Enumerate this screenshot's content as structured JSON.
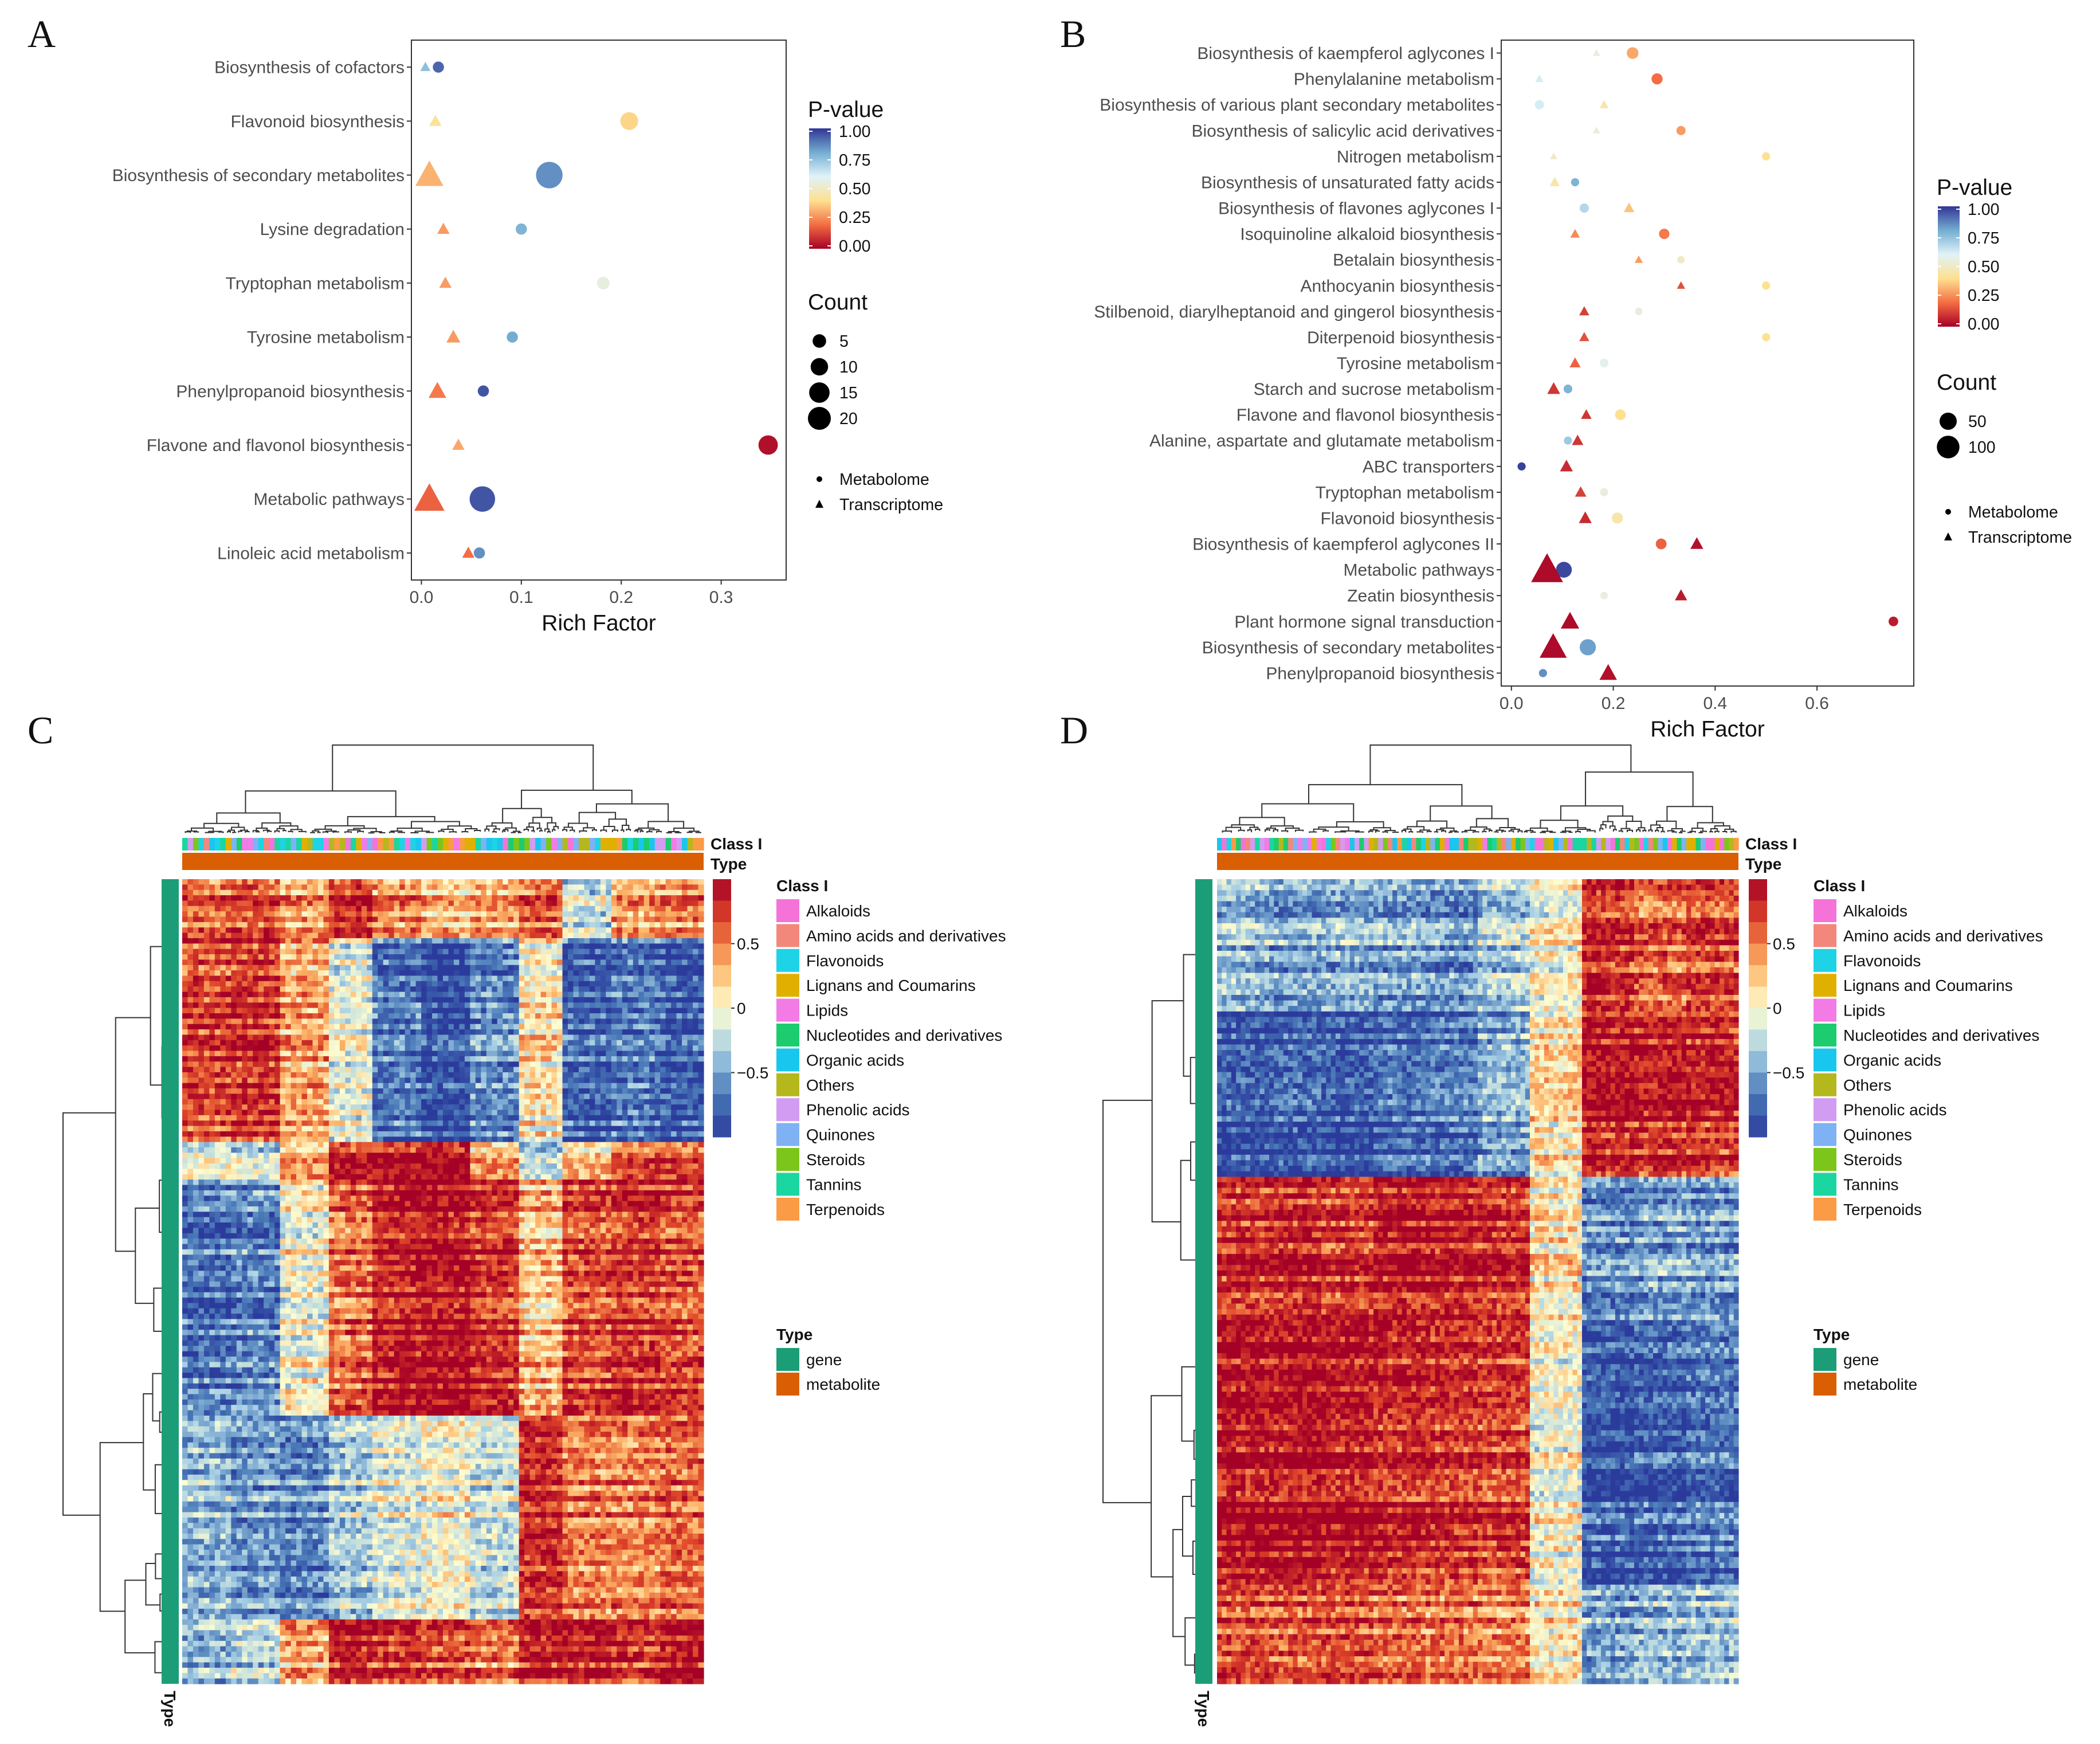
{
  "panels": [
    "A",
    "B",
    "C",
    "D"
  ],
  "chart_data": [
    {
      "panel": "A",
      "type": "scatter",
      "xlabel": "Rich Factor",
      "xticks": [
        "0.0",
        "0.1",
        "0.2",
        "0.3"
      ],
      "xlim": [
        -0.01,
        0.365
      ],
      "categories": [
        "Biosynthesis of cofactors",
        "Flavonoid biosynthesis",
        "Biosynthesis of secondary metabolites",
        "Lysine degradation",
        "Tryptophan metabolism",
        "Tyrosine metabolism",
        "Phenylpropanoid biosynthesis",
        "Flavone and flavonol biosynthesis",
        "Metabolic pathways",
        "Linoleic acid metabolism"
      ],
      "legend_pvalue": {
        "title": "P-value",
        "ticks": [
          "1.00",
          "0.75",
          "0.50",
          "0.25",
          "0.00"
        ]
      },
      "legend_count": {
        "title": "Count",
        "values": [
          5,
          10,
          15,
          20
        ],
        "labels": [
          "5",
          "10",
          "15",
          "20"
        ]
      },
      "legend_type": {
        "metabolome": "Metabolome",
        "transcriptome": "Transcriptome"
      },
      "series": [
        {
          "name": "Metabolome",
          "shape": "circle",
          "points": [
            {
              "pathway": "Biosynthesis of cofactors",
              "x": 0.017,
              "p": 0.92,
              "count": 2
            },
            {
              "pathway": "Flavonoid biosynthesis",
              "x": 0.208,
              "p": 0.38,
              "count": 8
            },
            {
              "pathway": "Biosynthesis of secondary metabolites",
              "x": 0.128,
              "p": 0.85,
              "count": 22
            },
            {
              "pathway": "Lysine degradation",
              "x": 0.1,
              "p": 0.78,
              "count": 2
            },
            {
              "pathway": "Tryptophan metabolism",
              "x": 0.182,
              "p": 0.55,
              "count": 3
            },
            {
              "pathway": "Tyrosine metabolism",
              "x": 0.091,
              "p": 0.8,
              "count": 2
            },
            {
              "pathway": "Phenylpropanoid biosynthesis",
              "x": 0.062,
              "p": 0.95,
              "count": 2
            },
            {
              "pathway": "Flavone and flavonol biosynthesis",
              "x": 0.347,
              "p": 0.03,
              "count": 10
            },
            {
              "pathway": "Metabolic pathways",
              "x": 0.061,
              "p": 0.95,
              "count": 20
            },
            {
              "pathway": "Linoleic acid metabolism",
              "x": 0.058,
              "p": 0.85,
              "count": 2
            }
          ]
        },
        {
          "name": "Transcriptome",
          "shape": "triangle",
          "points": [
            {
              "pathway": "Biosynthesis of cofactors",
              "x": 0.004,
              "p": 0.75,
              "count": 1
            },
            {
              "pathway": "Flavonoid biosynthesis",
              "x": 0.014,
              "p": 0.42,
              "count": 2
            },
            {
              "pathway": "Biosynthesis of secondary metabolites",
              "x": 0.008,
              "p": 0.32,
              "count": 20
            },
            {
              "pathway": "Lysine degradation",
              "x": 0.022,
              "p": 0.28,
              "count": 2
            },
            {
              "pathway": "Tryptophan metabolism",
              "x": 0.024,
              "p": 0.28,
              "count": 2
            },
            {
              "pathway": "Tyrosine metabolism",
              "x": 0.032,
              "p": 0.28,
              "count": 3
            },
            {
              "pathway": "Phenylpropanoid biosynthesis",
              "x": 0.016,
              "p": 0.22,
              "count": 6
            },
            {
              "pathway": "Flavone and flavonol biosynthesis",
              "x": 0.037,
              "p": 0.3,
              "count": 2
            },
            {
              "pathway": "Metabolic pathways",
              "x": 0.008,
              "p": 0.18,
              "count": 24
            },
            {
              "pathway": "Linoleic acid metabolism",
              "x": 0.047,
              "p": 0.2,
              "count": 2
            }
          ]
        }
      ]
    },
    {
      "panel": "B",
      "type": "scatter",
      "xlabel": "Rich Factor",
      "xticks": [
        "0.0",
        "0.2",
        "0.4",
        "0.6"
      ],
      "xlim": [
        -0.02,
        0.79
      ],
      "categories": [
        "Biosynthesis of kaempferol aglycones I",
        "Phenylalanine metabolism",
        "Biosynthesis of various plant secondary metabolites",
        "Biosynthesis of salicylic acid derivatives",
        "Nitrogen metabolism",
        "Biosynthesis of unsaturated fatty acids",
        "Biosynthesis of flavones aglycones I",
        "Isoquinoline alkaloid biosynthesis",
        "Betalain biosynthesis",
        "Anthocyanin biosynthesis",
        "Stilbenoid, diarylheptanoid and gingerol biosynthesis",
        "Diterpenoid biosynthesis",
        "Tyrosine metabolism",
        "Starch and sucrose metabolism",
        "Flavone and flavonol biosynthesis",
        "Alanine, aspartate and glutamate metabolism",
        "ABC transporters",
        "Tryptophan metabolism",
        "Flavonoid biosynthesis",
        "Biosynthesis of kaempferol aglycones II",
        "Metabolic pathways",
        "Zeatin biosynthesis",
        "Plant hormone signal transduction",
        "Biosynthesis of secondary metabolites",
        "Phenylpropanoid biosynthesis"
      ],
      "legend_pvalue": {
        "title": "P-value",
        "ticks": [
          "1.00",
          "0.75",
          "0.50",
          "0.25",
          "0.00"
        ]
      },
      "legend_count": {
        "title": "Count",
        "values": [
          50,
          100
        ],
        "labels": [
          "50",
          "100"
        ]
      },
      "legend_type": {
        "metabolome": "Metabolome",
        "transcriptome": "Transcriptome"
      },
      "series": [
        {
          "name": "Metabolome",
          "shape": "circle",
          "points": [
            {
              "pathway": "Biosynthesis of kaempferol aglycones I",
              "x": 0.238,
              "p": 0.3,
              "count": 12
            },
            {
              "pathway": "Phenylalanine metabolism",
              "x": 0.286,
              "p": 0.2,
              "count": 10
            },
            {
              "pathway": "Biosynthesis of various plant secondary metabolites",
              "x": 0.055,
              "p": 0.62,
              "count": 5
            },
            {
              "pathway": "Biosynthesis of salicylic acid derivatives",
              "x": 0.333,
              "p": 0.28,
              "count": 5
            },
            {
              "pathway": "Nitrogen metabolism",
              "x": 0.5,
              "p": 0.4,
              "count": 3
            },
            {
              "pathway": "Biosynthesis of unsaturated fatty acids",
              "x": 0.125,
              "p": 0.78,
              "count": 3
            },
            {
              "pathway": "Biosynthesis of flavones aglycones I",
              "x": 0.143,
              "p": 0.68,
              "count": 5
            },
            {
              "pathway": "Isoquinoline alkaloid biosynthesis",
              "x": 0.3,
              "p": 0.22,
              "count": 8
            },
            {
              "pathway": "Betalain biosynthesis",
              "x": 0.333,
              "p": 0.5,
              "count": 2
            },
            {
              "pathway": "Anthocyanin biosynthesis",
              "x": 0.5,
              "p": 0.4,
              "count": 3
            },
            {
              "pathway": "Stilbenoid, diarylheptanoid and gingerol biosynthesis",
              "x": 0.25,
              "p": 0.55,
              "count": 2
            },
            {
              "pathway": "Diterpenoid biosynthesis",
              "x": 0.5,
              "p": 0.4,
              "count": 3
            },
            {
              "pathway": "Tyrosine metabolism",
              "x": 0.182,
              "p": 0.58,
              "count": 4
            },
            {
              "pathway": "Starch and sucrose metabolism",
              "x": 0.111,
              "p": 0.78,
              "count": 4
            },
            {
              "pathway": "Flavone and flavonol biosynthesis",
              "x": 0.214,
              "p": 0.4,
              "count": 9
            },
            {
              "pathway": "Alanine, aspartate and glutamate metabolism",
              "x": 0.111,
              "p": 0.72,
              "count": 3
            },
            {
              "pathway": "ABC transporters",
              "x": 0.02,
              "p": 0.98,
              "count": 3
            },
            {
              "pathway": "Tryptophan metabolism",
              "x": 0.182,
              "p": 0.55,
              "count": 3
            },
            {
              "pathway": "Flavonoid biosynthesis",
              "x": 0.208,
              "p": 0.45,
              "count": 10
            },
            {
              "pathway": "Biosynthesis of kaempferol aglycones II",
              "x": 0.294,
              "p": 0.18,
              "count": 9
            },
            {
              "pathway": "Metabolic pathways",
              "x": 0.103,
              "p": 0.97,
              "count": 30
            },
            {
              "pathway": "Zeatin biosynthesis",
              "x": 0.182,
              "p": 0.55,
              "count": 2
            },
            {
              "pathway": "Plant hormone signal transduction",
              "x": 0.75,
              "p": 0.05,
              "count": 6
            },
            {
              "pathway": "Biosynthesis of secondary metabolites",
              "x": 0.15,
              "p": 0.82,
              "count": 32
            },
            {
              "pathway": "Phenylpropanoid biosynthesis",
              "x": 0.062,
              "p": 0.85,
              "count": 3
            }
          ]
        },
        {
          "name": "Transcriptome",
          "shape": "triangle",
          "points": [
            {
              "pathway": "Biosynthesis of kaempferol aglycones I",
              "x": 0.167,
              "p": 0.55,
              "count": 1
            },
            {
              "pathway": "Phenylalanine metabolism",
              "x": 0.055,
              "p": 0.62,
              "count": 2
            },
            {
              "pathway": "Biosynthesis of various plant secondary metabolites",
              "x": 0.182,
              "p": 0.45,
              "count": 3
            },
            {
              "pathway": "Biosynthesis of salicylic acid derivatives",
              "x": 0.167,
              "p": 0.55,
              "count": 1
            },
            {
              "pathway": "Nitrogen metabolism",
              "x": 0.083,
              "p": 0.5,
              "count": 1
            },
            {
              "pathway": "Biosynthesis of unsaturated fatty acids",
              "x": 0.085,
              "p": 0.45,
              "count": 5
            },
            {
              "pathway": "Biosynthesis of flavones aglycones I",
              "x": 0.231,
              "p": 0.35,
              "count": 6
            },
            {
              "pathway": "Isoquinoline alkaloid biosynthesis",
              "x": 0.125,
              "p": 0.25,
              "count": 4
            },
            {
              "pathway": "Betalain biosynthesis",
              "x": 0.25,
              "p": 0.28,
              "count": 2
            },
            {
              "pathway": "Anthocyanin biosynthesis",
              "x": 0.333,
              "p": 0.15,
              "count": 2
            },
            {
              "pathway": "Stilbenoid, diarylheptanoid and gingerol biosynthesis",
              "x": 0.143,
              "p": 0.12,
              "count": 5
            },
            {
              "pathway": "Diterpenoid biosynthesis",
              "x": 0.143,
              "p": 0.15,
              "count": 5
            },
            {
              "pathway": "Tyrosine metabolism",
              "x": 0.125,
              "p": 0.18,
              "count": 7
            },
            {
              "pathway": "Starch and sucrose metabolism",
              "x": 0.083,
              "p": 0.1,
              "count": 12
            },
            {
              "pathway": "Flavone and flavonol biosynthesis",
              "x": 0.147,
              "p": 0.1,
              "count": 6
            },
            {
              "pathway": "Alanine, aspartate and glutamate metabolism",
              "x": 0.13,
              "p": 0.1,
              "count": 8
            },
            {
              "pathway": "ABC transporters",
              "x": 0.108,
              "p": 0.08,
              "count": 12
            },
            {
              "pathway": "Tryptophan metabolism",
              "x": 0.136,
              "p": 0.12,
              "count": 8
            },
            {
              "pathway": "Flavonoid biosynthesis",
              "x": 0.145,
              "p": 0.08,
              "count": 12
            },
            {
              "pathway": "Biosynthesis of kaempferol aglycones II",
              "x": 0.364,
              "p": 0.03,
              "count": 12
            },
            {
              "pathway": "Metabolic pathways",
              "x": 0.07,
              "p": 0.02,
              "count": 140
            },
            {
              "pathway": "Zeatin biosynthesis",
              "x": 0.333,
              "p": 0.05,
              "count": 10
            },
            {
              "pathway": "Plant hormone signal transduction",
              "x": 0.115,
              "p": 0.02,
              "count": 35
            },
            {
              "pathway": "Biosynthesis of secondary metabolites",
              "x": 0.082,
              "p": 0.02,
              "count": 95
            },
            {
              "pathway": "Phenylpropanoid biosynthesis",
              "x": 0.19,
              "p": 0.03,
              "count": 30
            }
          ]
        }
      ]
    },
    {
      "panel": "C",
      "type": "heatmap",
      "colorbar_ticks": [
        "0.5",
        "0",
        "−0.5"
      ],
      "annotation_labels": {
        "class": "Class I",
        "type": "Type",
        "row_type": "Type"
      },
      "class_legend_title": "Class I",
      "type_legend_title": "Type",
      "row_blocks": [
        {
          "rows": 11,
          "cols": [
            0.6,
            0.7,
            0.4,
            0.8,
            0.5,
            0.3,
            0.4,
            0.6,
            -0.2,
            0.4,
            0.5
          ]
        },
        {
          "rows": 38,
          "cols": [
            0.7,
            0.75,
            0.35,
            -0.1,
            -0.7,
            -0.9,
            -0.6,
            0.1,
            -0.8,
            -0.7,
            -0.85
          ]
        },
        {
          "rows": 7,
          "cols": [
            -0.1,
            -0.2,
            0.3,
            0.8,
            0.85,
            0.9,
            0.3,
            -0.3,
            0.2,
            0.6,
            0.6
          ]
        },
        {
          "rows": 44,
          "cols": [
            -0.7,
            -0.6,
            0.0,
            0.6,
            0.9,
            0.95,
            0.8,
            0.3,
            0.7,
            0.8,
            0.7
          ]
        },
        {
          "rows": 38,
          "cols": [
            -0.4,
            -0.55,
            -0.6,
            -0.3,
            -0.1,
            0.0,
            -0.2,
            0.8,
            0.5,
            0.5,
            0.6
          ]
        },
        {
          "rows": 12,
          "cols": [
            -0.5,
            -0.3,
            0.3,
            0.8,
            0.7,
            0.6,
            0.5,
            0.8,
            0.8,
            0.7,
            0.85
          ]
        }
      ]
    },
    {
      "panel": "D",
      "type": "heatmap",
      "colorbar_ticks": [
        "0.5",
        "0",
        "−0.5"
      ],
      "annotation_labels": {
        "class": "Class I",
        "type": "Type",
        "row_type": "Type"
      },
      "class_legend_title": "Class I",
      "type_legend_title": "Type",
      "row_blocks": [
        {
          "rows": 24,
          "cols": [
            -0.4,
            -0.5,
            -0.45,
            -0.5,
            -0.55,
            -0.3,
            0.0,
            0.8,
            0.6,
            0.7
          ]
        },
        {
          "rows": 30,
          "cols": [
            -0.9,
            -0.85,
            -0.9,
            -0.8,
            -0.75,
            -0.5,
            0.1,
            0.85,
            0.8,
            0.75
          ]
        },
        {
          "rows": 26,
          "cols": [
            0.8,
            0.85,
            0.75,
            0.9,
            0.85,
            0.8,
            0.1,
            -0.6,
            -0.5,
            -0.55
          ]
        },
        {
          "rows": 48,
          "cols": [
            0.95,
            0.95,
            0.9,
            0.85,
            0.8,
            0.75,
            0.0,
            -0.85,
            -0.8,
            -0.7
          ]
        },
        {
          "rows": 18,
          "cols": [
            0.7,
            0.65,
            0.7,
            0.6,
            0.55,
            0.5,
            0.1,
            -0.5,
            -0.4,
            -0.35
          ]
        }
      ]
    }
  ],
  "class_legend": [
    {
      "label": "Alkaloids",
      "color": "#f573d8"
    },
    {
      "label": "Amino acids and derivatives",
      "color": "#f4877c"
    },
    {
      "label": "Flavonoids",
      "color": "#1ed3e6"
    },
    {
      "label": "Lignans and Coumarins",
      "color": "#e0b000"
    },
    {
      "label": "Lipids",
      "color": "#f27be6"
    },
    {
      "label": "Nucleotides and derivatives",
      "color": "#1ccc6e"
    },
    {
      "label": "Organic acids",
      "color": "#19c6ee"
    },
    {
      "label": "Others",
      "color": "#b5b81c"
    },
    {
      "label": "Phenolic acids",
      "color": "#d29cf2"
    },
    {
      "label": "Quinones",
      "color": "#7fb2f5"
    },
    {
      "label": "Steroids",
      "color": "#7cc61b"
    },
    {
      "label": "Tannins",
      "color": "#1bd6a0"
    },
    {
      "label": "Terpenoids",
      "color": "#fb9b45"
    }
  ],
  "type_legend": [
    {
      "label": "gene",
      "color": "#1b9e77"
    },
    {
      "label": "metabolite",
      "color": "#d95f02"
    }
  ]
}
